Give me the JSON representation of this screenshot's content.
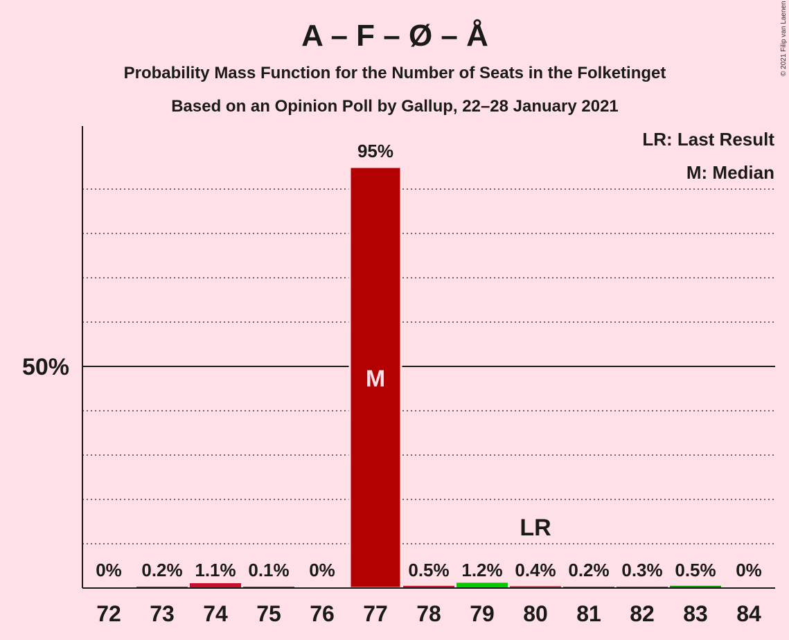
{
  "chart_data": {
    "type": "bar",
    "title": "A – F – Ø – Å",
    "subtitle": "Probability Mass Function for the Number of Seats in the Folketinget",
    "subtitle2": "Based on an Opinion Poll by Gallup, 22–28 January 2021",
    "copyright": "© 2021 Filip van Laenen",
    "legend": {
      "lr": "LR: Last Result",
      "median": "M: Median",
      "placement": "top-right"
    },
    "categories": [
      "72",
      "73",
      "74",
      "75",
      "76",
      "77",
      "78",
      "79",
      "80",
      "81",
      "82",
      "83",
      "84"
    ],
    "values": [
      0,
      0.2,
      1.1,
      0.1,
      0,
      95,
      0.5,
      1.2,
      0.4,
      0.2,
      0.3,
      0.5,
      0
    ],
    "value_labels": [
      "0%",
      "0.2%",
      "1.1%",
      "0.1%",
      "0%",
      "95%",
      "0.5%",
      "1.2%",
      "0.4%",
      "0.2%",
      "0.3%",
      "0.5%",
      "0%"
    ],
    "bar_colors": [
      "#c8102e",
      "#c8102e",
      "#c8102e",
      "#c8102e",
      "#c8102e",
      "#b30000",
      "#c8102e",
      "#00cc00",
      "#c8102e",
      "#c8102e",
      "#c8102e",
      "#009900",
      "#c8102e"
    ],
    "median_seat": "77",
    "median_marker": "M",
    "last_result_seat": "80",
    "last_result_marker": "LR",
    "y_tick_label": "50%",
    "y_tick_value": 50,
    "ylim": [
      0,
      100
    ],
    "grid": "dotted every 10%, solid at 50%"
  }
}
